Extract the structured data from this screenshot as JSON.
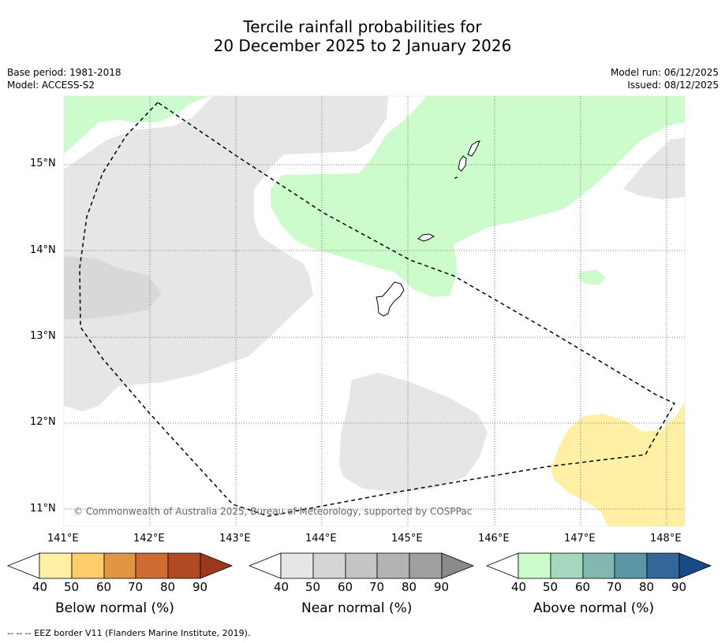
{
  "title": {
    "line1": "Tercile rainfall probabilities for",
    "line2": "20 December 2025 to 2 January 2026"
  },
  "info": {
    "base_period": "Base period: 1981-2018",
    "model": "Model: ACCESS-S2",
    "model_run": "Model run: 06/12/2025",
    "issued": "Issued: 08/12/2025"
  },
  "map": {
    "copyright": "© Commonwealth of Australia 2025, Bureau of Meteorology, supported by COSPPac",
    "latitude_labels": [
      "15°N",
      "14°N",
      "13°N",
      "12°N",
      "11°N"
    ],
    "longitude_labels": [
      "141°E",
      "142°E",
      "143°E",
      "144°E",
      "145°E",
      "146°E",
      "147°E",
      "148°E"
    ],
    "regions": [
      {
        "name": "near-normal-40-50",
        "label": "Near normal 40-50%"
      },
      {
        "name": "above-normal-40-50",
        "label": "Above normal 40-50%"
      },
      {
        "name": "below-normal-40-50",
        "label": "Below normal 40-50%"
      },
      {
        "name": "near-normal-50-60",
        "label": "Near normal 50-60%"
      }
    ],
    "icons": [
      "guam-outline-icon",
      "rota-outline-icon",
      "tinian-outline-icon",
      "saipan-outline-icon",
      "eez-border-icon"
    ]
  },
  "colorbars": [
    {
      "title": "Below normal (%)",
      "ticks": [
        "40",
        "50",
        "60",
        "70",
        "80",
        "90"
      ],
      "colors": [
        "#fff0a6",
        "#fdcd68",
        "#e19646",
        "#d06b34",
        "#b24a24",
        "#993a1d"
      ]
    },
    {
      "title": "Near normal (%)",
      "ticks": [
        "40",
        "50",
        "60",
        "70",
        "80",
        "90"
      ],
      "colors": [
        "#e6e6e6",
        "#d5d5d5",
        "#c5c5c5",
        "#b3b3b3",
        "#a0a0a0",
        "#8a8a8a"
      ]
    },
    {
      "title": "Above normal (%)",
      "ticks": [
        "40",
        "50",
        "60",
        "70",
        "80",
        "90"
      ],
      "colors": [
        "#ccfccc",
        "#a6d8be",
        "#82b8b0",
        "#5a96a4",
        "#336699",
        "#184a85"
      ]
    }
  ],
  "legend": {
    "eez": "--  --  -- EEZ border V11 (Flanders Marine Institute, 2019)."
  },
  "colors": {
    "near_normal_40": "#e6e6e6",
    "near_normal_50": "#d8d8d8",
    "above_normal_40": "#ccfccc",
    "below_normal_40": "#fff0a6"
  }
}
